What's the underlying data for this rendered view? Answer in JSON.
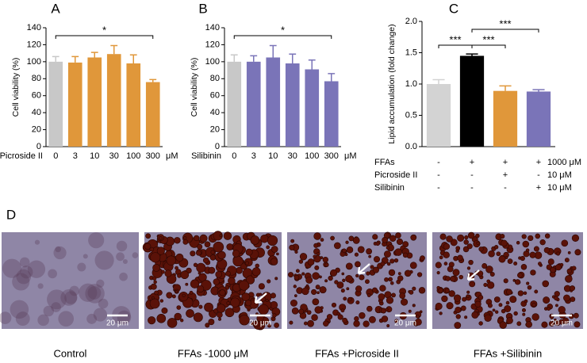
{
  "chart_data": [
    {
      "type": "bar",
      "panel": "A",
      "ylabel": "Cell viability (%)",
      "xlabel": "Picroside II",
      "unit": "μM",
      "categories": [
        "0",
        "3",
        "10",
        "30",
        "100",
        "300"
      ],
      "values": [
        100,
        99,
        105,
        109,
        98,
        76
      ],
      "errors": [
        6,
        7,
        6,
        10,
        10,
        3
      ],
      "colors": [
        "#c8c8c8",
        "#e0973a",
        "#e0973a",
        "#e0973a",
        "#e0973a",
        "#e0973a"
      ],
      "ylim": [
        0,
        140
      ],
      "yticks": [
        0,
        20,
        40,
        60,
        80,
        100,
        120,
        140
      ],
      "annotations": [
        {
          "label": "*",
          "from": 0,
          "to": 5
        }
      ]
    },
    {
      "type": "bar",
      "panel": "B",
      "ylabel": "Cell viability (%)",
      "xlabel": "Silibinin",
      "unit": "μM",
      "categories": [
        "0",
        "3",
        "10",
        "30",
        "100",
        "300"
      ],
      "values": [
        100,
        100,
        105,
        98,
        91,
        77
      ],
      "errors": [
        8,
        7,
        14,
        11,
        11,
        9
      ],
      "colors": [
        "#c8c8c8",
        "#7a74b8",
        "#7a74b8",
        "#7a74b8",
        "#7a74b8",
        "#7a74b8"
      ],
      "ylim": [
        0,
        140
      ],
      "yticks": [
        0,
        20,
        40,
        60,
        80,
        100,
        120,
        140
      ],
      "annotations": [
        {
          "label": "*",
          "from": 0,
          "to": 5
        }
      ]
    },
    {
      "type": "bar",
      "panel": "C",
      "ylabel": "Lipid accumulation (fold change)",
      "values": [
        1.0,
        1.45,
        0.89,
        0.88
      ],
      "errors": [
        0.07,
        0.03,
        0.08,
        0.03
      ],
      "colors": [
        "#d3d3d3",
        "#000000",
        "#e0973a",
        "#7a74b8"
      ],
      "ylim": [
        0,
        2.0
      ],
      "yticks": [
        {
          "value": 0,
          "label": "0.0"
        },
        {
          "value": 0.5,
          "label": "0.5"
        },
        {
          "value": 1.0,
          "label": "1.0"
        },
        {
          "value": 1.5,
          "label": "1.5"
        },
        {
          "value": 2.0,
          "label": "2.0"
        }
      ],
      "annotations": [
        {
          "label": "***",
          "from": 0,
          "to": 1
        },
        {
          "label": "***",
          "from": 1,
          "to": 2
        },
        {
          "label": "***",
          "from": 1,
          "to": 3
        }
      ],
      "conditions": [
        {
          "name": "FFAs",
          "signs": [
            "-",
            "+",
            "+",
            "+"
          ],
          "dose": "1000 μM"
        },
        {
          "name": "Picroside II",
          "signs": [
            "-",
            "-",
            "+",
            "-"
          ],
          "dose": "10 μM"
        },
        {
          "name": "Silibinin",
          "signs": [
            "-",
            "-",
            "-",
            "+"
          ],
          "dose": "10 μM"
        }
      ]
    }
  ],
  "panel_d": {
    "label": "D",
    "scale_bar": "20 μm",
    "captions": [
      "Control",
      "FFAs -1000 μM",
      "FFAs +Picroside II",
      "FFAs +Silibinin"
    ]
  }
}
